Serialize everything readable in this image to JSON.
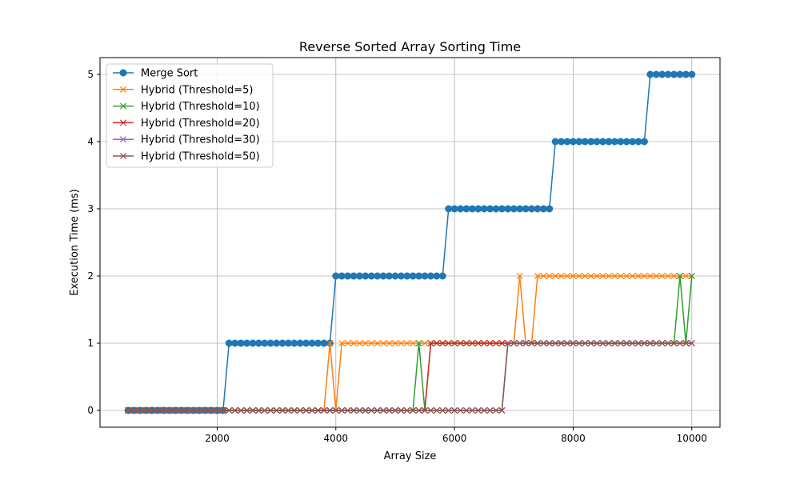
{
  "chart_data": {
    "type": "line",
    "title": "Reverse Sorted Array Sorting Time",
    "xlabel": "Array Size",
    "ylabel": "Execution Time (ms)",
    "xlim": [
      25,
      10475
    ],
    "ylim": [
      -0.25,
      5.25
    ],
    "xticks": [
      2000,
      4000,
      6000,
      8000,
      10000
    ],
    "yticks": [
      0,
      1,
      2,
      3,
      4,
      5
    ],
    "grid": true,
    "legend_position": "top-left",
    "x": [
      500,
      600,
      700,
      800,
      900,
      1000,
      1100,
      1200,
      1300,
      1400,
      1500,
      1600,
      1700,
      1800,
      1900,
      2000,
      2100,
      2200,
      2300,
      2400,
      2500,
      2600,
      2700,
      2800,
      2900,
      3000,
      3100,
      3200,
      3300,
      3400,
      3500,
      3600,
      3700,
      3800,
      3900,
      4000,
      4100,
      4200,
      4300,
      4400,
      4500,
      4600,
      4700,
      4800,
      4900,
      5000,
      5100,
      5200,
      5300,
      5400,
      5500,
      5600,
      5700,
      5800,
      5900,
      6000,
      6100,
      6200,
      6300,
      6400,
      6500,
      6600,
      6700,
      6800,
      6900,
      7000,
      7100,
      7200,
      7300,
      7400,
      7500,
      7600,
      7700,
      7800,
      7900,
      8000,
      8100,
      8200,
      8300,
      8400,
      8500,
      8600,
      8700,
      8800,
      8900,
      9000,
      9100,
      9200,
      9300,
      9400,
      9500,
      9600,
      9700,
      9800,
      9900,
      10000
    ],
    "series": [
      {
        "name": "Merge Sort",
        "color": "#1f77b4",
        "marker": "circle",
        "values": [
          0,
          0,
          0,
          0,
          0,
          0,
          0,
          0,
          0,
          0,
          0,
          0,
          0,
          0,
          0,
          0,
          0,
          1,
          1,
          1,
          1,
          1,
          1,
          1,
          1,
          1,
          1,
          1,
          1,
          1,
          1,
          1,
          1,
          1,
          1,
          2,
          2,
          2,
          2,
          2,
          2,
          2,
          2,
          2,
          2,
          2,
          2,
          2,
          2,
          2,
          2,
          2,
          2,
          2,
          3,
          3,
          3,
          3,
          3,
          3,
          3,
          3,
          3,
          3,
          3,
          3,
          3,
          3,
          3,
          3,
          3,
          3,
          4,
          4,
          4,
          4,
          4,
          4,
          4,
          4,
          4,
          4,
          4,
          4,
          4,
          4,
          4,
          4,
          5,
          5,
          5,
          5,
          5,
          5,
          5,
          5
        ]
      },
      {
        "name": "Hybrid (Threshold=5)",
        "color": "#ff7f0e",
        "marker": "x",
        "values": [
          0,
          0,
          0,
          0,
          0,
          0,
          0,
          0,
          0,
          0,
          0,
          0,
          0,
          0,
          0,
          0,
          0,
          0,
          0,
          0,
          0,
          0,
          0,
          0,
          0,
          0,
          0,
          0,
          0,
          0,
          0,
          0,
          0,
          0,
          1,
          0,
          1,
          1,
          1,
          1,
          1,
          1,
          1,
          1,
          1,
          1,
          1,
          1,
          1,
          1,
          1,
          1,
          1,
          1,
          1,
          1,
          1,
          1,
          1,
          1,
          1,
          1,
          1,
          1,
          1,
          1,
          2,
          1,
          1,
          2,
          2,
          2,
          2,
          2,
          2,
          2,
          2,
          2,
          2,
          2,
          2,
          2,
          2,
          2,
          2,
          2,
          2,
          2,
          2,
          2,
          2,
          2,
          2,
          2,
          2,
          2
        ]
      },
      {
        "name": "Hybrid (Threshold=10)",
        "color": "#2ca02c",
        "marker": "x",
        "values": [
          0,
          0,
          0,
          0,
          0,
          0,
          0,
          0,
          0,
          0,
          0,
          0,
          0,
          0,
          0,
          0,
          0,
          0,
          0,
          0,
          0,
          0,
          0,
          0,
          0,
          0,
          0,
          0,
          0,
          0,
          0,
          0,
          0,
          0,
          0,
          0,
          0,
          0,
          0,
          0,
          0,
          0,
          0,
          0,
          0,
          0,
          0,
          0,
          0,
          1,
          0,
          1,
          1,
          1,
          1,
          1,
          1,
          1,
          1,
          1,
          1,
          1,
          1,
          1,
          1,
          1,
          1,
          1,
          1,
          1,
          1,
          1,
          1,
          1,
          1,
          1,
          1,
          1,
          1,
          1,
          1,
          1,
          1,
          1,
          1,
          1,
          1,
          1,
          1,
          1,
          1,
          1,
          1,
          2,
          1,
          2
        ]
      },
      {
        "name": "Hybrid (Threshold=20)",
        "color": "#d62728",
        "marker": "x",
        "values": [
          0,
          0,
          0,
          0,
          0,
          0,
          0,
          0,
          0,
          0,
          0,
          0,
          0,
          0,
          0,
          0,
          0,
          0,
          0,
          0,
          0,
          0,
          0,
          0,
          0,
          0,
          0,
          0,
          0,
          0,
          0,
          0,
          0,
          0,
          0,
          0,
          0,
          0,
          0,
          0,
          0,
          0,
          0,
          0,
          0,
          0,
          0,
          0,
          0,
          0,
          0,
          1,
          1,
          1,
          1,
          1,
          1,
          1,
          1,
          1,
          1,
          1,
          1,
          1,
          1,
          1,
          1,
          1,
          1,
          1,
          1,
          1,
          1,
          1,
          1,
          1,
          1,
          1,
          1,
          1,
          1,
          1,
          1,
          1,
          1,
          1,
          1,
          1,
          1,
          1,
          1,
          1,
          1,
          1,
          1,
          1
        ]
      },
      {
        "name": "Hybrid (Threshold=30)",
        "color": "#9467bd",
        "marker": "x",
        "values": [
          0,
          0,
          0,
          0,
          0,
          0,
          0,
          0,
          0,
          0,
          0,
          0,
          0,
          0,
          0,
          0,
          0,
          0,
          0,
          0,
          0,
          0,
          0,
          0,
          0,
          0,
          0,
          0,
          0,
          0,
          0,
          0,
          0,
          0,
          0,
          0,
          0,
          0,
          0,
          0,
          0,
          0,
          0,
          0,
          0,
          0,
          0,
          0,
          0,
          0,
          0,
          0,
          0,
          0,
          0,
          0,
          0,
          0,
          0,
          0,
          0,
          0,
          0,
          0,
          1,
          1,
          1,
          1,
          1,
          1,
          1,
          1,
          1,
          1,
          1,
          1,
          1,
          1,
          1,
          1,
          1,
          1,
          1,
          1,
          1,
          1,
          1,
          1,
          1,
          1,
          1,
          1,
          1,
          1,
          1,
          1
        ]
      },
      {
        "name": "Hybrid (Threshold=50)",
        "color": "#8c564b",
        "marker": "x",
        "values": [
          0,
          0,
          0,
          0,
          0,
          0,
          0,
          0,
          0,
          0,
          0,
          0,
          0,
          0,
          0,
          0,
          0,
          0,
          0,
          0,
          0,
          0,
          0,
          0,
          0,
          0,
          0,
          0,
          0,
          0,
          0,
          0,
          0,
          0,
          0,
          0,
          0,
          0,
          0,
          0,
          0,
          0,
          0,
          0,
          0,
          0,
          0,
          0,
          0,
          0,
          0,
          0,
          0,
          0,
          0,
          0,
          0,
          0,
          0,
          0,
          0,
          0,
          0,
          0,
          1,
          1,
          1,
          1,
          1,
          1,
          1,
          1,
          1,
          1,
          1,
          1,
          1,
          1,
          1,
          1,
          1,
          1,
          1,
          1,
          1,
          1,
          1,
          1,
          1,
          1,
          1,
          1,
          1,
          1,
          1,
          1
        ]
      }
    ]
  }
}
